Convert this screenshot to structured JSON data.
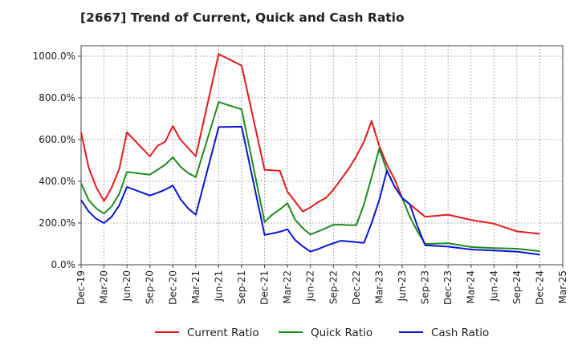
{
  "chart_data": {
    "type": "line",
    "title": "[2667]  Trend of Current, Quick and Cash Ratio",
    "xlabel": "",
    "ylabel": "",
    "ylim": [
      0,
      1050
    ],
    "yticks": [
      0,
      200,
      400,
      600,
      800,
      1000
    ],
    "ytick_labels": [
      "0.0%",
      "200.0%",
      "400.0%",
      "600.0%",
      "800.0%",
      "1000.0%"
    ],
    "xtick_labels": [
      "Dec-19",
      "Mar-20",
      "Jun-20",
      "Sep-20",
      "Dec-20",
      "Mar-21",
      "Jun-21",
      "Sep-21",
      "Dec-21",
      "Mar-22",
      "Jun-22",
      "Sep-22",
      "Dec-22",
      "Mar-23",
      "Jun-23",
      "Sep-23",
      "Dec-23",
      "Mar-24",
      "Jun-24",
      "Sep-24",
      "Dec-24",
      "Mar-25"
    ],
    "x_unit": "months since Dec-19",
    "xlim": [
      0,
      63
    ],
    "grid": true,
    "legend_position": "bottom",
    "series": [
      {
        "name": "Current Ratio",
        "color": "#e31a1c",
        "x": [
          0,
          1,
          2,
          3,
          4,
          5,
          6,
          9,
          10,
          11,
          12,
          13,
          14,
          15,
          18,
          21,
          24,
          25,
          26,
          27,
          29,
          30,
          31,
          32,
          33,
          34,
          35,
          36,
          37,
          38,
          39,
          40,
          41,
          42,
          45,
          48,
          51,
          54,
          57,
          60
        ],
        "values": [
          635,
          465,
          370,
          305,
          370,
          460,
          635,
          520,
          570,
          590,
          665,
          600,
          560,
          520,
          1010,
          955,
          455,
          453,
          450,
          350,
          255,
          275,
          300,
          320,
          360,
          410,
          460,
          520,
          590,
          690,
          570,
          480,
          410,
          320,
          230,
          240,
          215,
          197,
          160,
          148
        ]
      },
      {
        "name": "Quick Ratio",
        "color": "#1f8a1f",
        "x": [
          0,
          1,
          2,
          3,
          4,
          5,
          6,
          9,
          10,
          11,
          12,
          13,
          14,
          15,
          18,
          21,
          24,
          25,
          26,
          27,
          28,
          29,
          30,
          31,
          32,
          33,
          34,
          35,
          36,
          37,
          38,
          39,
          40,
          41,
          42,
          43,
          44,
          45,
          48,
          51,
          54,
          57,
          60
        ],
        "values": [
          390,
          310,
          270,
          245,
          280,
          340,
          445,
          432,
          455,
          480,
          515,
          470,
          440,
          420,
          780,
          745,
          205,
          240,
          265,
          295,
          215,
          175,
          145,
          160,
          175,
          192,
          192,
          190,
          190,
          290,
          420,
          557,
          450,
          375,
          320,
          230,
          160,
          100,
          103,
          85,
          80,
          77,
          65
        ]
      },
      {
        "name": "Cash Ratio",
        "color": "#0a14d6",
        "x": [
          0,
          1,
          2,
          3,
          4,
          5,
          6,
          9,
          10,
          11,
          12,
          13,
          14,
          15,
          18,
          21,
          24,
          25,
          26,
          27,
          28,
          29,
          30,
          31,
          32,
          33,
          34,
          35,
          36,
          37,
          38,
          39,
          40,
          41,
          42,
          43,
          44,
          45,
          48,
          51,
          54,
          57,
          60
        ],
        "values": [
          310,
          255,
          220,
          200,
          230,
          285,
          373,
          332,
          345,
          360,
          380,
          315,
          270,
          240,
          660,
          662,
          143,
          150,
          158,
          170,
          118,
          88,
          63,
          75,
          90,
          103,
          115,
          112,
          108,
          105,
          200,
          310,
          452,
          375,
          320,
          290,
          185,
          93,
          87,
          73,
          68,
          63,
          48
        ]
      }
    ]
  }
}
